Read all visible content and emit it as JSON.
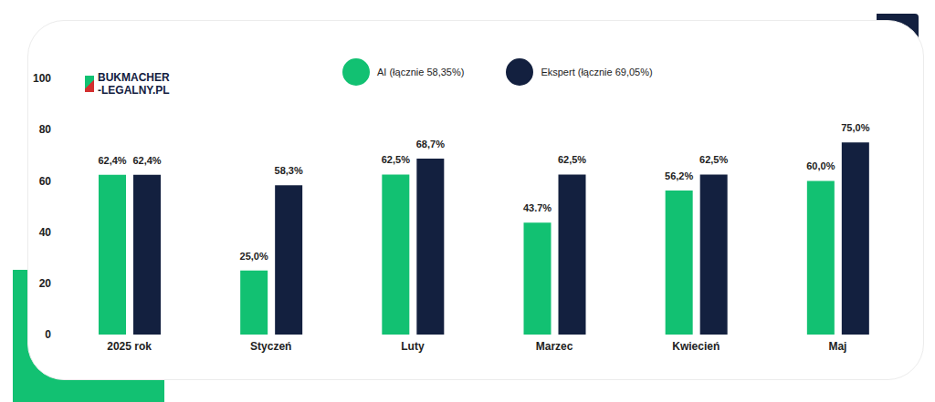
{
  "chart_data": {
    "type": "bar",
    "annotations": [
      "BUKMACHER",
      "-LEGALNY.PL"
    ],
    "categories": [
      "2025 rok",
      "Styczeń",
      "Luty",
      "Marzec",
      "Kwiecień",
      "Maj"
    ],
    "series": [
      {
        "name": "AI (łącznie 58,35%)",
        "color": "#12c172",
        "values": [
          62.4,
          25.0,
          62.5,
          43.7,
          56.2,
          60.0
        ],
        "value_labels": [
          "62,4%",
          "25,0%",
          "62,5%",
          "43.7%",
          "56,2%",
          "60,0%"
        ]
      },
      {
        "name": "Ekspert (łącznie 69,05%)",
        "color": "#13203f",
        "values": [
          62.4,
          58.3,
          68.7,
          62.5,
          62.5,
          75.0
        ],
        "value_labels": [
          "62,4%",
          "58,3%",
          "68,7%",
          "62,5%",
          "62,5%",
          "75,0%"
        ]
      }
    ],
    "ylim": [
      0,
      100
    ],
    "yticks": [
      0,
      20,
      40,
      60,
      80,
      100
    ],
    "grid": false,
    "legend": "top",
    "data_labels": true
  }
}
